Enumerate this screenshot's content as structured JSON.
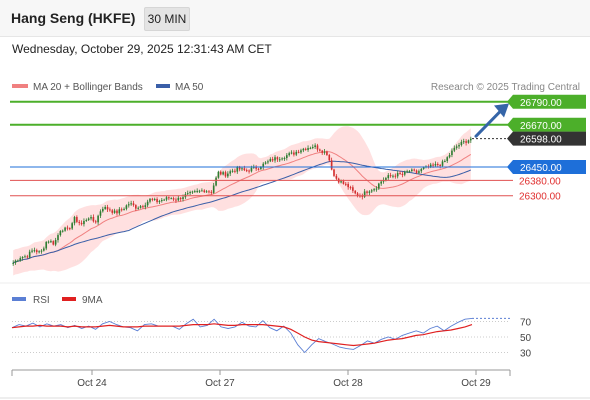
{
  "header": {
    "title": "Hang Seng (HKFE)",
    "interval": "30 MIN"
  },
  "datetime": "Wednesday, October 29, 2025 12:31:43 AM CET",
  "legend": {
    "bollinger_label": "MA 20 + Bollinger Bands",
    "ma50_label": "MA 50",
    "credit": "Research © 2025 Trading Central",
    "rsi_label": "RSI",
    "rsi_ma_label": "9MA"
  },
  "colors": {
    "up": "#2e7d32",
    "down": "#d32f2f",
    "band": "#ffd6d6",
    "ma20": "#f08080",
    "ma50": "#3a5fa8",
    "resistance": "#4caf2a",
    "pivot": "#1e6fd9",
    "support": "#e05050",
    "rsi": "#5b7fd4",
    "rsi_ma": "#e02020"
  },
  "chart_data": [
    {
      "type": "candlestick",
      "title": "Hang Seng (HKFE)",
      "x_labels": [
        "Oct 24",
        "Oct 27",
        "Oct 28",
        "Oct 29"
      ],
      "price_range": [
        25850,
        26820
      ],
      "levels": [
        {
          "label": "26790.00",
          "value": 26790,
          "kind": "resistance"
        },
        {
          "label": "26670.00",
          "value": 26670,
          "kind": "resistance"
        },
        {
          "label": "26598.00",
          "value": 26598,
          "kind": "last"
        },
        {
          "label": "26450.00",
          "value": 26450,
          "kind": "pivot"
        },
        {
          "label": "26380.00",
          "value": 26380,
          "kind": "support"
        },
        {
          "label": "26300.00",
          "value": 26300,
          "kind": "support"
        }
      ],
      "close_path": [
        25950,
        25980,
        25985,
        26020,
        26000,
        26070,
        26050,
        26130,
        26120,
        26180,
        26150,
        26190,
        26160,
        26240,
        26230,
        26210,
        26230,
        26260,
        26240,
        26250,
        26280,
        26270,
        26280,
        26290,
        26280,
        26300,
        26310,
        26320,
        26330,
        26320,
        26420,
        26410,
        26430,
        26440,
        26430,
        26440,
        26450,
        26470,
        26490,
        26500,
        26510,
        26520,
        26540,
        26550,
        26560,
        26540,
        26520,
        26400,
        26370,
        26350,
        26310,
        26300,
        26330,
        26340,
        26380,
        26400,
        26410,
        26410,
        26430,
        26420,
        26440,
        26450,
        26460,
        26470,
        26520,
        26560,
        26580,
        26598
      ]
    },
    {
      "type": "line",
      "title": "RSI",
      "y_ticks": [
        70,
        50,
        30
      ],
      "y_range": [
        10,
        90
      ],
      "series": [
        {
          "name": "RSI",
          "values": [
            62,
            66,
            64,
            68,
            63,
            67,
            64,
            66,
            62,
            65,
            61,
            64,
            60,
            67,
            70,
            66,
            63,
            62,
            58,
            66,
            67,
            64,
            64,
            64,
            60,
            67,
            73,
            63,
            65,
            73,
            63,
            61,
            63,
            69,
            64,
            63,
            71,
            62,
            58,
            64,
            55,
            40,
            30,
            40,
            48,
            44,
            41,
            37,
            35,
            34,
            39,
            45,
            42,
            47,
            50,
            47,
            52,
            55,
            58,
            55,
            61,
            64,
            58,
            64,
            69,
            73,
            74
          ]
        },
        {
          "name": "9MA",
          "values": [
            62,
            63,
            64,
            64,
            65,
            64,
            64,
            64,
            63,
            64,
            63,
            63,
            63,
            64,
            65,
            64,
            63,
            63,
            63,
            64,
            64,
            64,
            64,
            64,
            64,
            65,
            66,
            66,
            66,
            67,
            66,
            65,
            65,
            66,
            66,
            66,
            66,
            65,
            64,
            63,
            60,
            55,
            50,
            46,
            44,
            43,
            42,
            41,
            40,
            39,
            40,
            41,
            42,
            44,
            46,
            47,
            48,
            50,
            52,
            53,
            55,
            57,
            58,
            59,
            61,
            63,
            66
          ]
        }
      ]
    }
  ]
}
